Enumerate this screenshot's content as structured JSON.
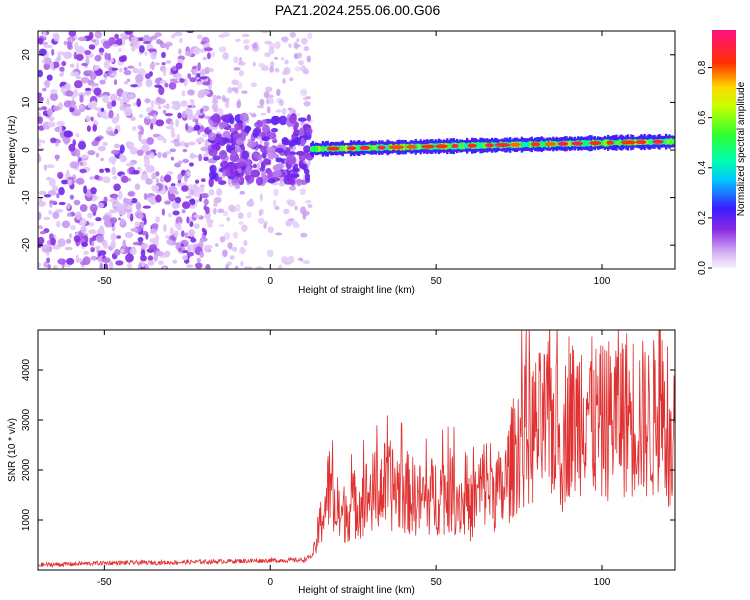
{
  "title": "PAZ1.2024.255.06.00.G06",
  "chart_data": [
    {
      "type": "heatmap",
      "title": "PAZ1.2024.255.06.00.G06",
      "xlabel": "Height of straight line (km)",
      "ylabel": "Frequency (Hz)",
      "xlim": [
        -70,
        122
      ],
      "ylim": [
        -25,
        25
      ],
      "xticks": [
        -50,
        0,
        50,
        100
      ],
      "yticks": [
        20,
        10,
        0,
        -10,
        -20
      ],
      "colorbar": {
        "label": "Normalized spectral amplitude",
        "ticks": [
          0.0,
          0.2,
          0.4,
          0.6,
          0.8
        ],
        "range": [
          0,
          0.95
        ],
        "colormap": "rainbow (magenta-white to blue to cyan to green to yellow to red to pink)"
      },
      "regions": [
        {
          "x_range": [
            -70,
            -18
          ],
          "description": "scattered low-amplitude noise across all frequencies",
          "amplitude": 0.1
        },
        {
          "x_range": [
            -18,
            12
          ],
          "description": "noise concentrated near 0 Hz",
          "amplitude": 0.2
        },
        {
          "x_range": [
            12,
            122
          ],
          "description": "narrow signal band near 0 to 2 Hz",
          "amplitude_peak": 0.95,
          "center_hz_start": 0.2,
          "center_hz_end": 1.8
        }
      ]
    },
    {
      "type": "line",
      "xlabel": "Height of straight line (km)",
      "ylabel": "SNR (10 * v/v)",
      "xlim": [
        -70,
        122
      ],
      "ylim": [
        0,
        4800
      ],
      "xticks": [
        -50,
        0,
        50,
        100
      ],
      "yticks": [
        1000,
        2000,
        3000,
        4000
      ],
      "color": "#e03030",
      "series": [
        {
          "x": [
            -70,
            -50,
            -30,
            -10,
            10,
            13,
            15,
            18,
            20,
            25,
            30,
            35,
            40,
            45,
            50,
            55,
            60,
            65,
            70,
            72,
            75,
            80,
            85,
            88,
            90,
            92,
            95,
            97,
            100,
            105,
            110,
            115,
            118,
            120,
            122
          ],
          "y": [
            100,
            140,
            150,
            180,
            200,
            300,
            900,
            1700,
            1000,
            1300,
            1500,
            1700,
            1600,
            1400,
            1500,
            1600,
            1200,
            1800,
            1500,
            2000,
            2600,
            2800,
            3000,
            2400,
            3200,
            2900,
            3600,
            3000,
            2900,
            3200,
            3100,
            2900,
            3500,
            2300,
            2100
          ]
        }
      ]
    }
  ]
}
